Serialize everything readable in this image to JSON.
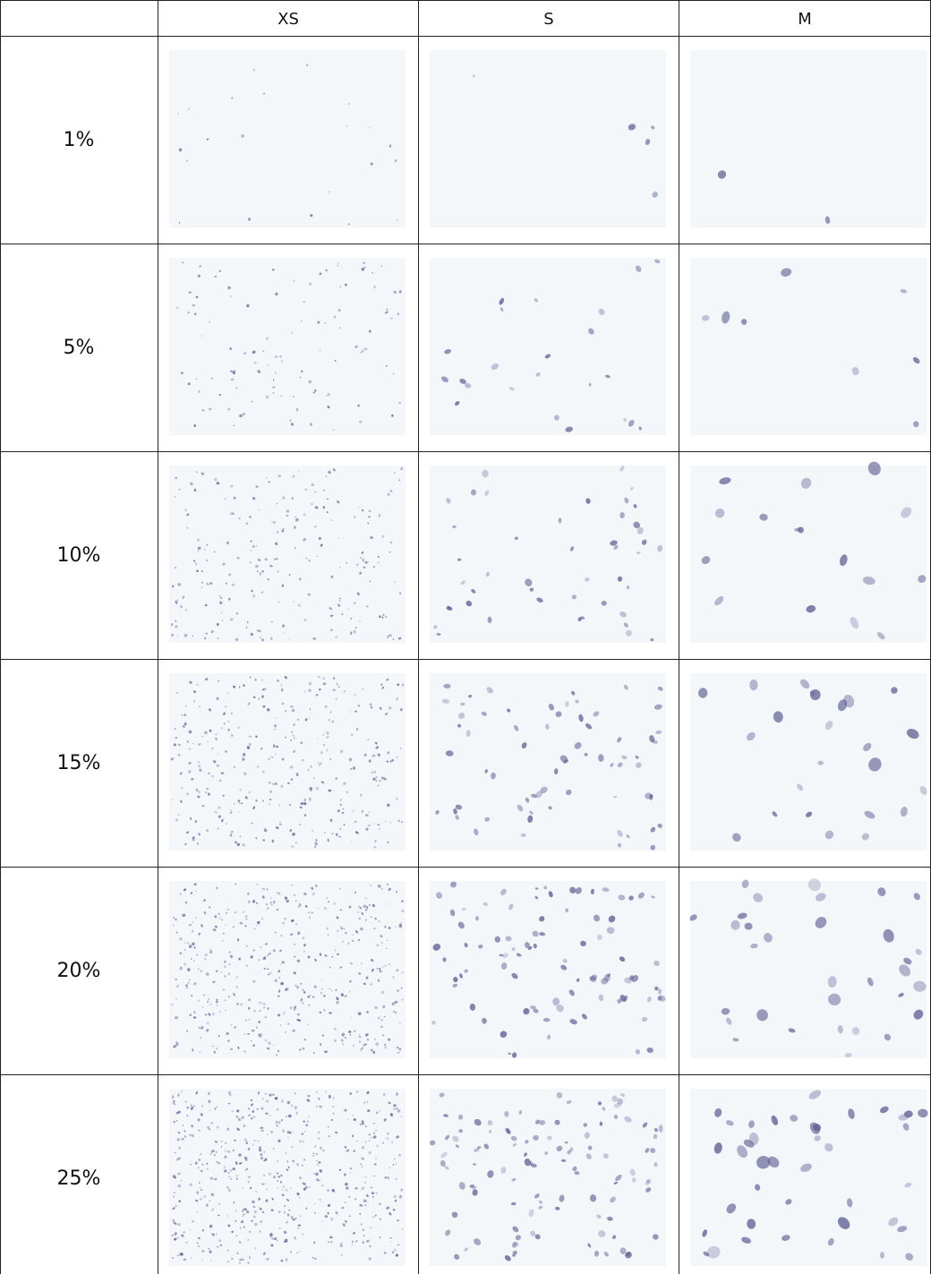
{
  "table": {
    "columns": [
      "XS",
      "S",
      "M"
    ],
    "rows": [
      "1%",
      "5%",
      "10%",
      "15%",
      "20%",
      "25%"
    ]
  }
}
